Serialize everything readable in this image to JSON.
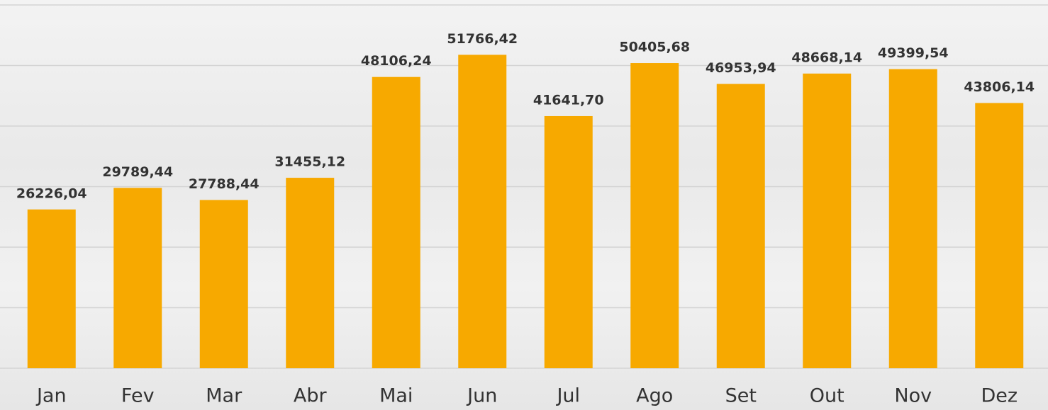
{
  "chart_data": {
    "type": "bar",
    "categories": [
      "Jan",
      "Fev",
      "Mar",
      "Abr",
      "Mai",
      "Jun",
      "Jul",
      "Ago",
      "Set",
      "Out",
      "Nov",
      "Dez"
    ],
    "values": [
      26226.04,
      29789.44,
      27788.44,
      31455.12,
      48106.24,
      51766.42,
      41641.7,
      50405.68,
      46953.94,
      48668.14,
      49399.54,
      43806.14
    ],
    "value_labels": [
      "26226,04",
      "29789,44",
      "27788,44",
      "31455,12",
      "48106,24",
      "51766,42",
      "41641,70",
      "50405,68",
      "46953,94",
      "48668,14",
      "49399,54",
      "43806,14"
    ],
    "color": "#f7a900",
    "ylim": [
      0,
      60000
    ],
    "yticks": [
      0,
      10000,
      20000,
      30000,
      40000,
      50000,
      60000
    ],
    "grid": true
  }
}
